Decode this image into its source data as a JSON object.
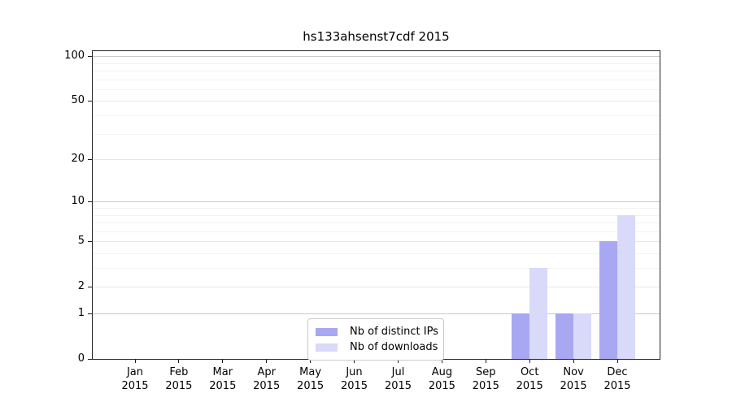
{
  "chart_data": {
    "type": "bar",
    "title": "hs133ahsenst7cdf 2015",
    "scale": "log1p",
    "grid": "horizontal, major and minor",
    "legend_position": "bottom-center inside plot",
    "categories": [
      "Jan",
      "Feb",
      "Mar",
      "Apr",
      "May",
      "Jun",
      "Jul",
      "Aug",
      "Sep",
      "Oct",
      "Nov",
      "Dec"
    ],
    "x_year": "2015",
    "series": [
      {
        "name": "Nb of distinct IPs",
        "color": "#a7a7f2",
        "values": [
          0,
          0,
          0,
          0,
          0,
          0,
          0,
          0,
          0,
          1,
          1,
          5
        ]
      },
      {
        "name": "Nb of downloads",
        "color": "#d9d9f9",
        "values": [
          0,
          0,
          0,
          0,
          0,
          0,
          0,
          0,
          0,
          3,
          1,
          8
        ]
      }
    ],
    "y_ticks": [
      0,
      1,
      2,
      5,
      10,
      20,
      50,
      100
    ],
    "y_tick_labels": [
      "0",
      "1",
      "2",
      "5",
      "10",
      "20",
      "50",
      "100"
    ],
    "y_minor_gridlines": [
      3,
      4,
      6,
      7,
      8,
      9,
      30,
      40,
      60,
      70,
      80,
      90
    ],
    "y_decade_gridlines": [
      1,
      10,
      100
    ],
    "xlabel": "",
    "ylabel": "",
    "ylim": [
      0,
      108
    ]
  }
}
